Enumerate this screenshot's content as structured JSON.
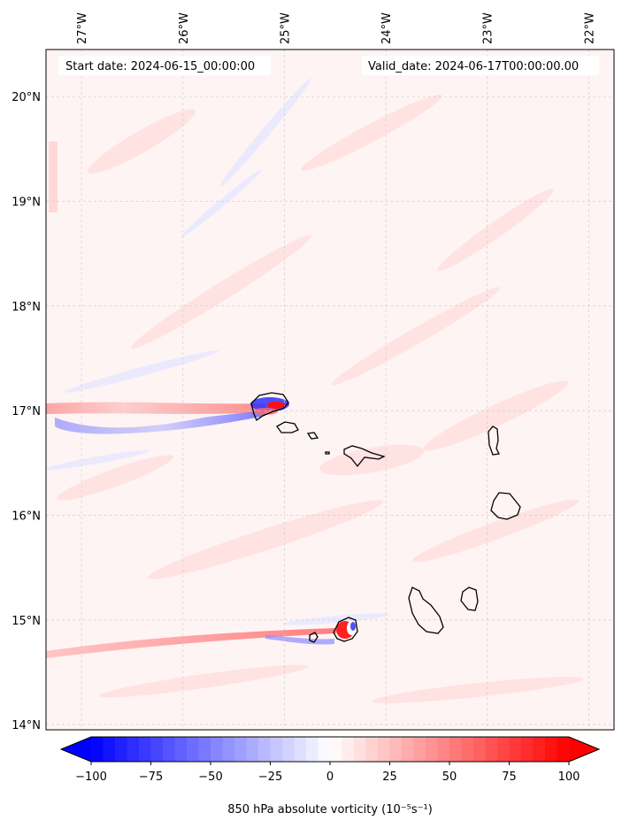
{
  "header": {
    "start_date": "Start date: 2024-06-15_00:00:00",
    "valid_date": "Valid_date: 2024-06-17T00:00:00.00"
  },
  "map": {
    "lon_range": [
      -27.35,
      -21.75
    ],
    "lat_range": [
      13.95,
      20.45
    ],
    "grid": true
  },
  "longitude_ticks": [
    {
      "label": "27°W",
      "value": -27
    },
    {
      "label": "26°W",
      "value": -26
    },
    {
      "label": "25°W",
      "value": -25
    },
    {
      "label": "24°W",
      "value": -24
    },
    {
      "label": "23°W",
      "value": -23
    },
    {
      "label": "22°W",
      "value": -22
    }
  ],
  "latitude_ticks": [
    {
      "label": "20°N",
      "value": 20
    },
    {
      "label": "19°N",
      "value": 19
    },
    {
      "label": "18°N",
      "value": 18
    },
    {
      "label": "17°N",
      "value": 17
    },
    {
      "label": "16°N",
      "value": 16
    },
    {
      "label": "15°N",
      "value": 15
    },
    {
      "label": "14°N",
      "value": 14
    }
  ],
  "colorbar": {
    "label": "850 hPa absolute vorticity (10⁻⁵s⁻¹)",
    "min": -100,
    "max": 100,
    "ticks": [
      "−100",
      "−75",
      "−50",
      "−25",
      "0",
      "25",
      "50",
      "75",
      "100"
    ],
    "tick_values": [
      -100,
      -75,
      -50,
      -25,
      0,
      25,
      50,
      75,
      100
    ],
    "extend": "both",
    "colormap": "bwr"
  },
  "colors": {
    "negative": "#0000ff",
    "neutral": "#ffffff",
    "positive": "#ff0000",
    "coastline": "#000000",
    "grid": "#c8c8c8"
  }
}
